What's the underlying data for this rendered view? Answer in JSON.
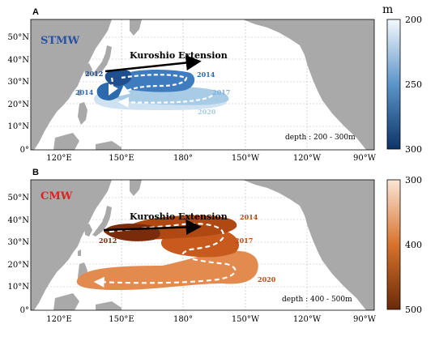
{
  "panel_a": {
    "letter": "A",
    "water_mass": "STMW",
    "current_label": "Kuroshio Extension",
    "depth_label": "depth : 200 - 300m",
    "years": [
      "2012",
      "2014",
      "2014",
      "2017",
      "2020"
    ],
    "colorbar": {
      "unit": "m",
      "ticks": [
        "200",
        "250",
        "300"
      ]
    },
    "colors": {
      "title": "#2a52a0",
      "dark": "#1f4f8f",
      "mid": "#3f7cbf",
      "light": "#a8cbe6",
      "pale": "#cfe2f2"
    }
  },
  "panel_b": {
    "letter": "B",
    "water_mass": "CMW",
    "current_label": "Kuroshio Extension",
    "depth_label": "depth : 400 - 500m",
    "years": [
      "2012",
      "2014",
      "2017",
      "2020"
    ],
    "colorbar": {
      "ticks": [
        "300",
        "400",
        "500"
      ]
    },
    "colors": {
      "title": "#e02020",
      "dark": "#7a2c0a",
      "mid": "#c85a1e",
      "light": "#e38a4e",
      "label": "#c24d12"
    }
  },
  "axes": {
    "lat_ticks": [
      "50°N",
      "40°N",
      "30°N",
      "20°N",
      "10°N",
      "0°"
    ],
    "lon_ticks": [
      "120°E",
      "150°E",
      "180°",
      "150°W",
      "120°W",
      "90°W"
    ]
  },
  "land_color": "#a9a9a9"
}
